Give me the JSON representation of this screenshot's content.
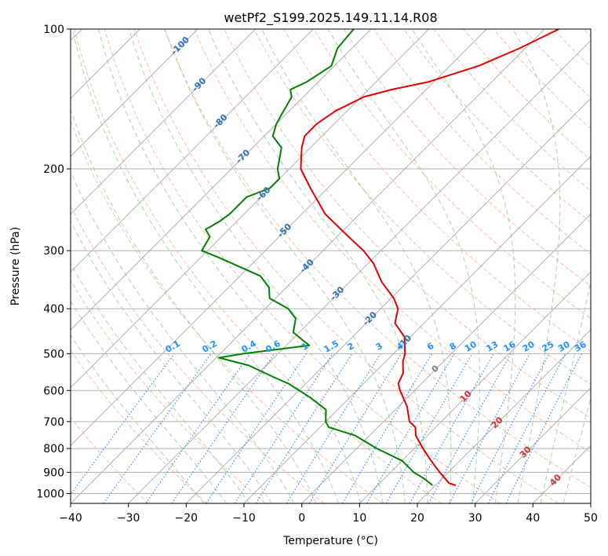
{
  "chart_data": {
    "type": "skew-t log-p",
    "title": "wetPf2_S199.2025.149.11.14.R08",
    "xlabel": "Temperature (°C)",
    "ylabel": "Pressure (hPa)",
    "xlim": [
      -40,
      50
    ],
    "ylim": [
      1050,
      100
    ],
    "x_ticks": [
      -40,
      -30,
      -20,
      -10,
      0,
      10,
      20,
      30,
      40,
      50
    ],
    "x_tick_labels": [
      "−40",
      "−30",
      "−20",
      "−10",
      "0",
      "10",
      "20",
      "30",
      "40",
      "50"
    ],
    "y_ticks": [
      100,
      200,
      300,
      400,
      500,
      600,
      700,
      800,
      900,
      1000
    ],
    "y_log_scale": true,
    "grid": true,
    "skew_degrees": 45,
    "temperature": {
      "color": "#e00000",
      "points": [
        [
          100,
          -37.5
        ],
        [
          110,
          -41
        ],
        [
          120,
          -45
        ],
        [
          130,
          -51
        ],
        [
          135,
          -56
        ],
        [
          140,
          -59.5
        ],
        [
          150,
          -62
        ],
        [
          160,
          -63
        ],
        [
          170,
          -63
        ],
        [
          180,
          -61.5
        ],
        [
          200,
          -58
        ],
        [
          220,
          -53
        ],
        [
          250,
          -46
        ],
        [
          280,
          -38
        ],
        [
          300,
          -33
        ],
        [
          320,
          -29
        ],
        [
          350,
          -24.5
        ],
        [
          380,
          -19.5
        ],
        [
          400,
          -17
        ],
        [
          430,
          -15
        ],
        [
          460,
          -11
        ],
        [
          500,
          -8
        ],
        [
          520,
          -7
        ],
        [
          550,
          -5
        ],
        [
          580,
          -4
        ],
        [
          600,
          -2.5
        ],
        [
          650,
          1.5
        ],
        [
          700,
          4.5
        ],
        [
          720,
          6.5
        ],
        [
          750,
          8
        ],
        [
          800,
          11.5
        ],
        [
          850,
          15
        ],
        [
          900,
          18.5
        ],
        [
          950,
          22
        ],
        [
          960,
          23.5
        ]
      ]
    },
    "dewpoint": {
      "color": "#008000",
      "points": [
        [
          100,
          -73
        ],
        [
          110,
          -72.5
        ],
        [
          120,
          -70.5
        ],
        [
          130,
          -72
        ],
        [
          135,
          -73.5
        ],
        [
          140,
          -72
        ],
        [
          150,
          -71
        ],
        [
          160,
          -70
        ],
        [
          170,
          -68.5
        ],
        [
          180,
          -65
        ],
        [
          200,
          -62
        ],
        [
          210,
          -60
        ],
        [
          220,
          -60
        ],
        [
          230,
          -62.5
        ],
        [
          250,
          -62.5
        ],
        [
          260,
          -63
        ],
        [
          270,
          -64
        ],
        [
          280,
          -62
        ],
        [
          300,
          -61
        ],
        [
          310,
          -57
        ],
        [
          340,
          -46.5
        ],
        [
          360,
          -43
        ],
        [
          380,
          -41
        ],
        [
          400,
          -36
        ],
        [
          420,
          -33
        ],
        [
          450,
          -31
        ],
        [
          480,
          -26
        ],
        [
          500,
          -36
        ],
        [
          510,
          -39.5
        ],
        [
          530,
          -33
        ],
        [
          560,
          -27
        ],
        [
          580,
          -23
        ],
        [
          620,
          -17
        ],
        [
          660,
          -12
        ],
        [
          700,
          -10
        ],
        [
          720,
          -8.5
        ],
        [
          750,
          -2.5
        ],
        [
          800,
          3.5
        ],
        [
          850,
          10
        ],
        [
          900,
          14
        ],
        [
          930,
          17
        ],
        [
          960,
          19.5
        ]
      ]
    },
    "isotherm_labels": [
      "-100",
      "-90",
      "-80",
      "-70",
      "-60",
      "-50",
      "-40",
      "-30",
      "-20",
      "-10",
      "0",
      "10",
      "20",
      "30",
      "40"
    ],
    "isotherm_label_values": [
      -100,
      -90,
      -80,
      -70,
      -60,
      -50,
      -40,
      -30,
      -20,
      -10,
      0,
      10,
      20,
      30,
      40
    ],
    "mixing_ratio_labels": [
      "0.1",
      "0.2",
      "0.4",
      "0.6",
      "1",
      "1.5",
      "2",
      "3",
      "4",
      "6",
      "8",
      "10",
      "13",
      "16",
      "20",
      "25",
      "30",
      "36"
    ],
    "mixing_ratio_values": [
      0.1,
      0.2,
      0.4,
      0.6,
      1,
      1.5,
      2,
      3,
      4,
      6,
      8,
      10,
      13,
      16,
      20,
      25,
      30,
      36
    ],
    "colors": {
      "isotherm_cold": "#2a6fb5",
      "isotherm_zero": "#808080",
      "isotherm_warm": "#d03030",
      "mixing_ratio": "#1e90ff",
      "dry_adiabat": "#f5a07a",
      "moist_adiabat": "#8fc98f",
      "grid": "#b0b0b0",
      "boundary": "#d2b48c"
    }
  }
}
